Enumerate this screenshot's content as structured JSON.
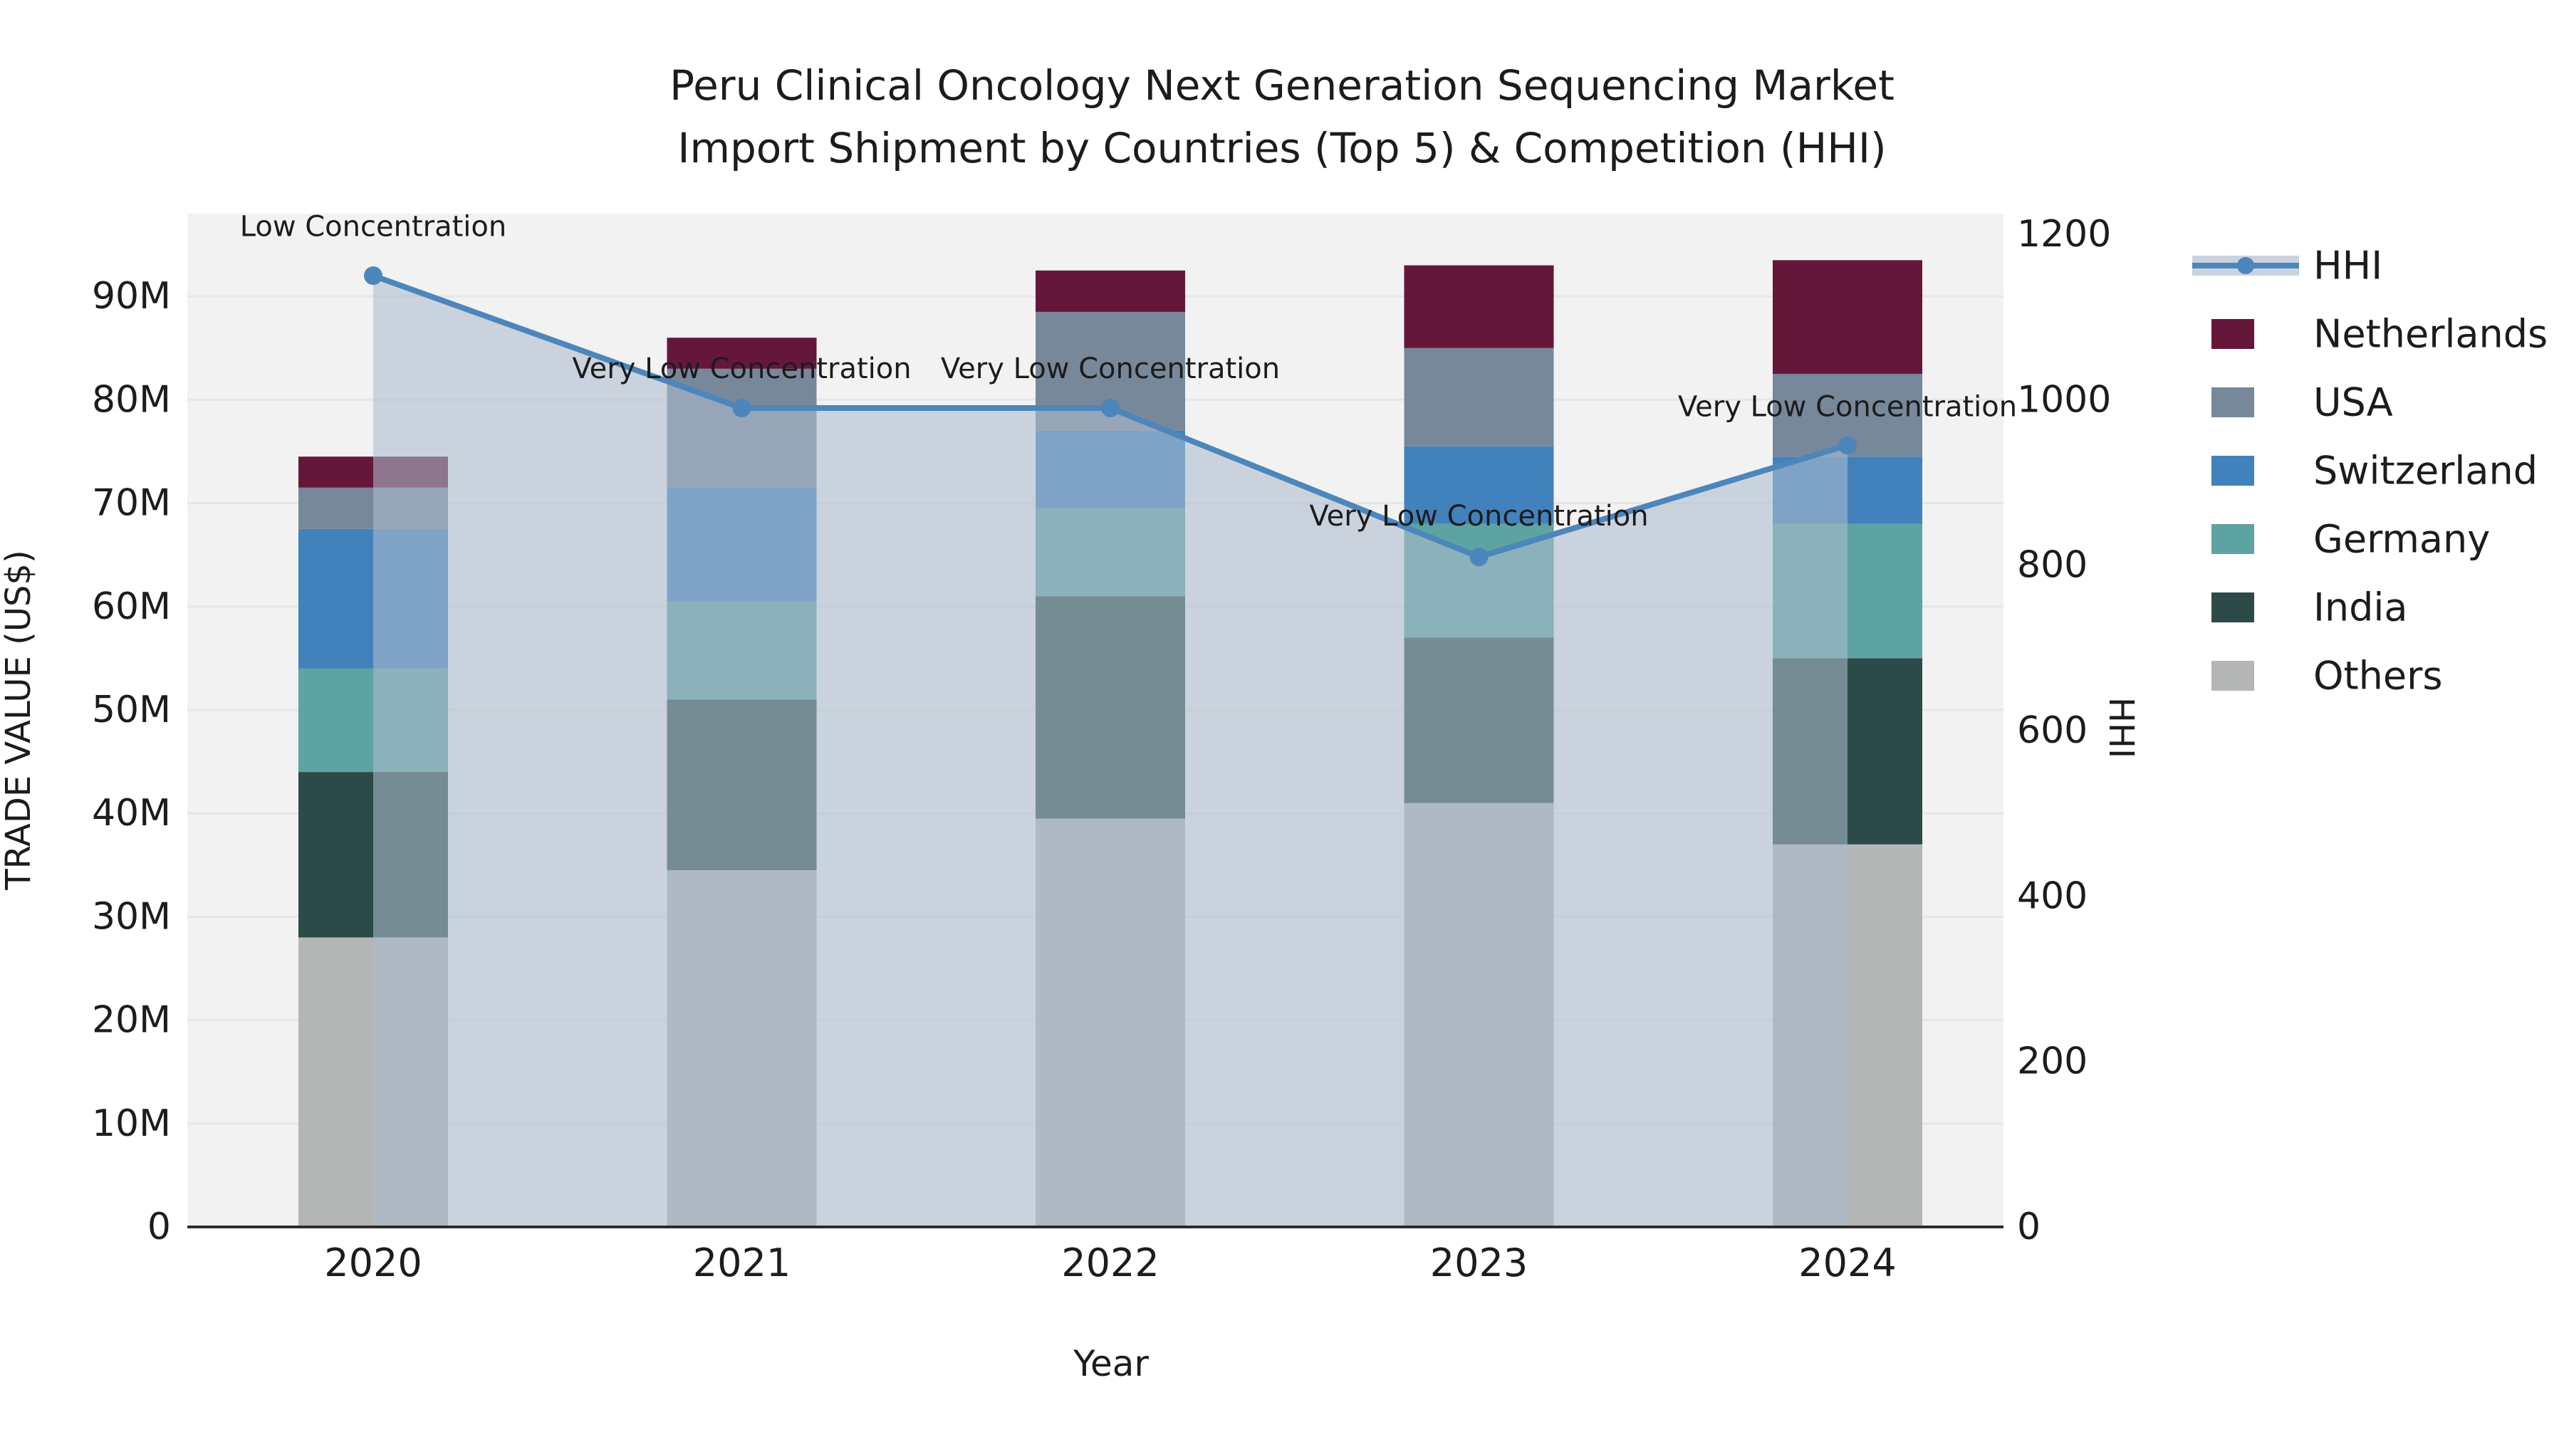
{
  "title": {
    "line1": "Peru Clinical Oncology Next Generation Sequencing Market",
    "line2": "Import Shipment by Countries (Top 5) & Competition (HHI)"
  },
  "axes": {
    "x": {
      "label": "Year",
      "ticks": [
        "2020",
        "2021",
        "2022",
        "2023",
        "2024"
      ]
    },
    "y_left": {
      "label": "TRADE VALUE (US$)",
      "ticks": [
        "0",
        "10M",
        "20M",
        "30M",
        "40M",
        "50M",
        "60M",
        "70M",
        "80M",
        "90M"
      ],
      "tick_values_musd": [
        0,
        10,
        20,
        30,
        40,
        50,
        60,
        70,
        80,
        90
      ]
    },
    "y_right": {
      "label": "HHI",
      "ticks": [
        "0",
        "200",
        "400",
        "600",
        "800",
        "1000",
        "1200"
      ],
      "tick_values": [
        0,
        200,
        400,
        600,
        800,
        1000,
        1200
      ]
    }
  },
  "legend": {
    "items": [
      {
        "label": "HHI",
        "kind": "line",
        "color": "#4c86bb",
        "band_color": "#c9d2de"
      },
      {
        "label": "Netherlands",
        "kind": "swatch",
        "color": "#65173a"
      },
      {
        "label": "USA",
        "kind": "swatch",
        "color": "#78889b"
      },
      {
        "label": "Switzerland",
        "kind": "swatch",
        "color": "#4282bc"
      },
      {
        "label": "Germany",
        "kind": "swatch",
        "color": "#5da3a2"
      },
      {
        "label": "India",
        "kind": "swatch",
        "color": "#2c4b48"
      },
      {
        "label": "Others",
        "kind": "swatch",
        "color": "#b4b6b6"
      }
    ]
  },
  "annotations_note": "text labels shown above each HHI marker",
  "chart_data": {
    "type": "bar",
    "subtype": "stacked-bars-with-line-overlay",
    "title": "Peru Clinical Oncology Next Generation Sequencing Market — Import Shipment by Countries (Top 5) & Competition (HHI)",
    "xlabel": "Year",
    "ylabel_left": "TRADE VALUE (US$)",
    "ylabel_right": "HHI",
    "categories": [
      "2020",
      "2021",
      "2022",
      "2023",
      "2024"
    ],
    "units_bars": "millions US$",
    "stack_order_bottom_to_top": [
      "Others",
      "India",
      "Germany",
      "Switzerland",
      "USA",
      "Netherlands"
    ],
    "series": [
      {
        "name": "Others",
        "type": "bar",
        "axis": "left",
        "color": "#b4b6b6",
        "values_musd": [
          28,
          34.5,
          39.5,
          41,
          37
        ]
      },
      {
        "name": "India",
        "type": "bar",
        "axis": "left",
        "color": "#2c4b48",
        "values_musd": [
          16,
          16.5,
          21.5,
          16,
          18
        ]
      },
      {
        "name": "Germany",
        "type": "bar",
        "axis": "left",
        "color": "#5da3a2",
        "values_musd": [
          10,
          9.5,
          8.5,
          11,
          13
        ]
      },
      {
        "name": "Switzerland",
        "type": "bar",
        "axis": "left",
        "color": "#4282bc",
        "values_musd": [
          13.5,
          11,
          7.5,
          7.5,
          6.5
        ]
      },
      {
        "name": "USA",
        "type": "bar",
        "axis": "left",
        "color": "#78889b",
        "values_musd": [
          4,
          11.5,
          11.5,
          9.5,
          8
        ]
      },
      {
        "name": "Netherlands",
        "type": "bar",
        "axis": "left",
        "color": "#65173a",
        "values_musd": [
          3,
          3,
          4,
          8,
          11
        ]
      },
      {
        "name": "HHI",
        "type": "line",
        "axis": "right",
        "color": "#4c86bb",
        "fill_color": "rgba(173,187,205,0.58)",
        "values": [
          1150,
          990,
          990,
          810,
          945
        ]
      }
    ],
    "bar_totals_musd": [
      74.5,
      86,
      92.5,
      93,
      93.5
    ],
    "ylim_left_musd": [
      0,
      98
    ],
    "ylim_right": [
      0,
      1225
    ],
    "grid": "horizontal",
    "legend_position": "right-outside",
    "annotations": [
      {
        "category": "2020",
        "text": "Low Concentration",
        "hhi": 1150,
        "text_hhi": 1198
      },
      {
        "category": "2021",
        "text": "Very Low Concentration",
        "hhi": 990,
        "text_hhi": 1026
      },
      {
        "category": "2022",
        "text": "Very Low Concentration",
        "hhi": 990,
        "text_hhi": 1026
      },
      {
        "category": "2023",
        "text": "Very Low Concentration",
        "hhi": 810,
        "text_hhi": 848
      },
      {
        "category": "2024",
        "text": "Very Low Concentration",
        "hhi": 945,
        "text_hhi": 980
      }
    ]
  },
  "style": {
    "plot_bg": "#f2f2f3",
    "gridline": "#e6e6e8",
    "baseline": "#2d2d2d",
    "text_color": "#1c1c1c"
  }
}
